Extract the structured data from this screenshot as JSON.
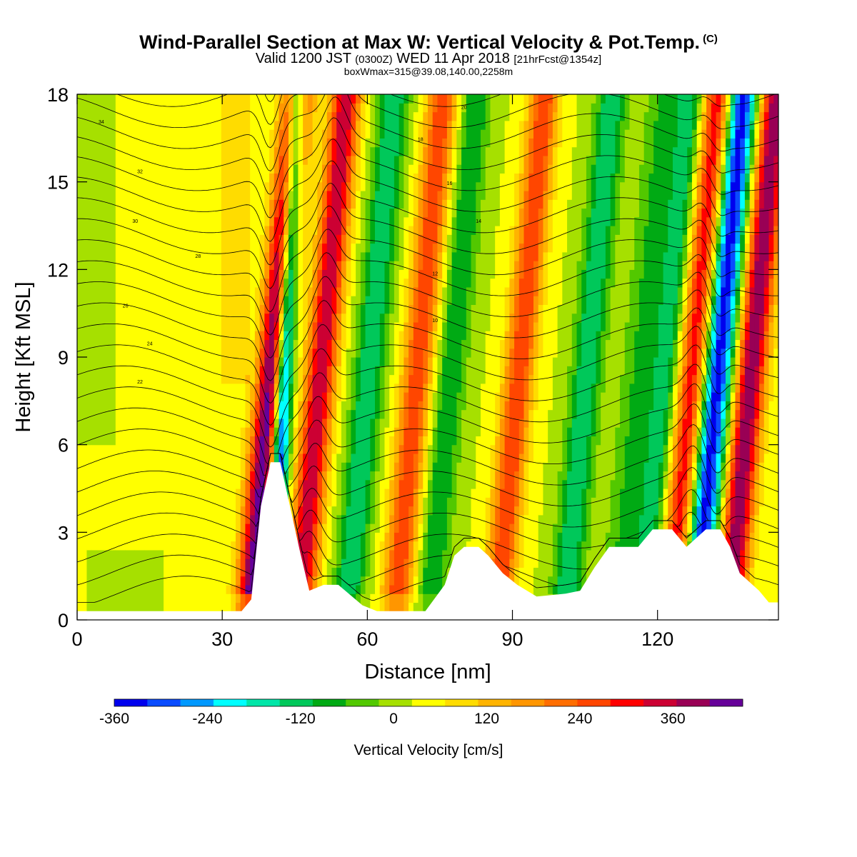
{
  "title": {
    "main": "Wind-Parallel Section at Max W: Vertical Velocity & Pot.Temp.",
    "copyright": "(C)",
    "valid_prefix": "Valid 1200 JST",
    "valid_utc": "(0300Z)",
    "valid_date": "WED 11 Apr 2018",
    "forecast": "[21hrFcst@1354z]",
    "box_info": "boxWmax=315@39.08,140.00,2258m"
  },
  "chart_data": {
    "type": "heatmap",
    "title": "Wind-Parallel Section at Max W: Vertical Velocity & Pot.Temp.",
    "xlabel": "Distance [nm]",
    "ylabel": "Height [Kft MSL]",
    "xlim": [
      0,
      145
    ],
    "ylim": [
      0,
      18
    ],
    "x_ticks": [
      0,
      30,
      60,
      90,
      120
    ],
    "y_ticks": [
      0,
      3,
      6,
      9,
      12,
      15,
      18
    ],
    "colorbar": {
      "title": "Vertical Velocity [cm/s]",
      "tick_values": [
        -360,
        -240,
        -120,
        0,
        120,
        240,
        360
      ],
      "levels": [
        -360,
        -330,
        -300,
        -270,
        -240,
        -210,
        -180,
        -150,
        -120,
        -90,
        -60,
        -30,
        0,
        30,
        60,
        90,
        120,
        150,
        180,
        210,
        240,
        270,
        300,
        330,
        360
      ],
      "colors": [
        "#0000ee",
        "#0a4cff",
        "#0099ff",
        "#00ffff",
        "#00e6a8",
        "#00c85a",
        "#00aa14",
        "#52c800",
        "#a6e000",
        "#ffff00",
        "#ffdc00",
        "#ffb400",
        "#ff9600",
        "#ff6e00",
        "#ff4600",
        "#ff0000",
        "#cc0033",
        "#990055",
        "#660099"
      ]
    },
    "updraft_bands": [
      {
        "x": 39,
        "peak_w": 300
      },
      {
        "x": 49,
        "peak_w": 240
      },
      {
        "x": 59,
        "peak_w": -120
      },
      {
        "x": 69,
        "peak_w": 180
      },
      {
        "x": 76,
        "peak_w": -90
      },
      {
        "x": 90,
        "peak_w": 180
      },
      {
        "x": 104,
        "peak_w": -120
      },
      {
        "x": 114,
        "peak_w": -60
      },
      {
        "x": 120,
        "peak_w": -120
      },
      {
        "x": 126,
        "peak_w": 210
      },
      {
        "x": 131,
        "peak_w": -270
      },
      {
        "x": 138,
        "peak_w": 270
      }
    ],
    "downdraft_core": {
      "x": 42,
      "peak_w": -315
    },
    "terrain_kft": [
      [
        0,
        0.3
      ],
      [
        34,
        0.3
      ],
      [
        36,
        0.7
      ],
      [
        38,
        3.9
      ],
      [
        40,
        5.4
      ],
      [
        42,
        5.4
      ],
      [
        44,
        3.9
      ],
      [
        46,
        2.4
      ],
      [
        48,
        1.0
      ],
      [
        51,
        1.2
      ],
      [
        54,
        1.2
      ],
      [
        59,
        0.5
      ],
      [
        62,
        0.3
      ],
      [
        72,
        0.3
      ],
      [
        76,
        1.2
      ],
      [
        78,
        2.2
      ],
      [
        80,
        2.5
      ],
      [
        83,
        2.5
      ],
      [
        85,
        2.2
      ],
      [
        88,
        1.6
      ],
      [
        91,
        1.2
      ],
      [
        95,
        0.8
      ],
      [
        101,
        0.9
      ],
      [
        104,
        1.0
      ],
      [
        107,
        1.8
      ],
      [
        110,
        2.5
      ],
      [
        116,
        2.5
      ],
      [
        119,
        3.1
      ],
      [
        123,
        3.1
      ],
      [
        126,
        2.5
      ],
      [
        130,
        3.1
      ],
      [
        133,
        3.1
      ],
      [
        135,
        2.5
      ],
      [
        137,
        1.6
      ],
      [
        141,
        1.0
      ],
      [
        143,
        0.6
      ],
      [
        145,
        0.6
      ]
    ],
    "theta_isentropes": {
      "units": "C",
      "labels": [
        "34",
        "32",
        "30",
        "28",
        "26",
        "24",
        "22",
        "20",
        "18",
        "16",
        "14",
        "12",
        "10"
      ]
    }
  },
  "colors": {
    "background": "#ffffff",
    "frame": "#000000",
    "terrain": "#ffffff"
  }
}
